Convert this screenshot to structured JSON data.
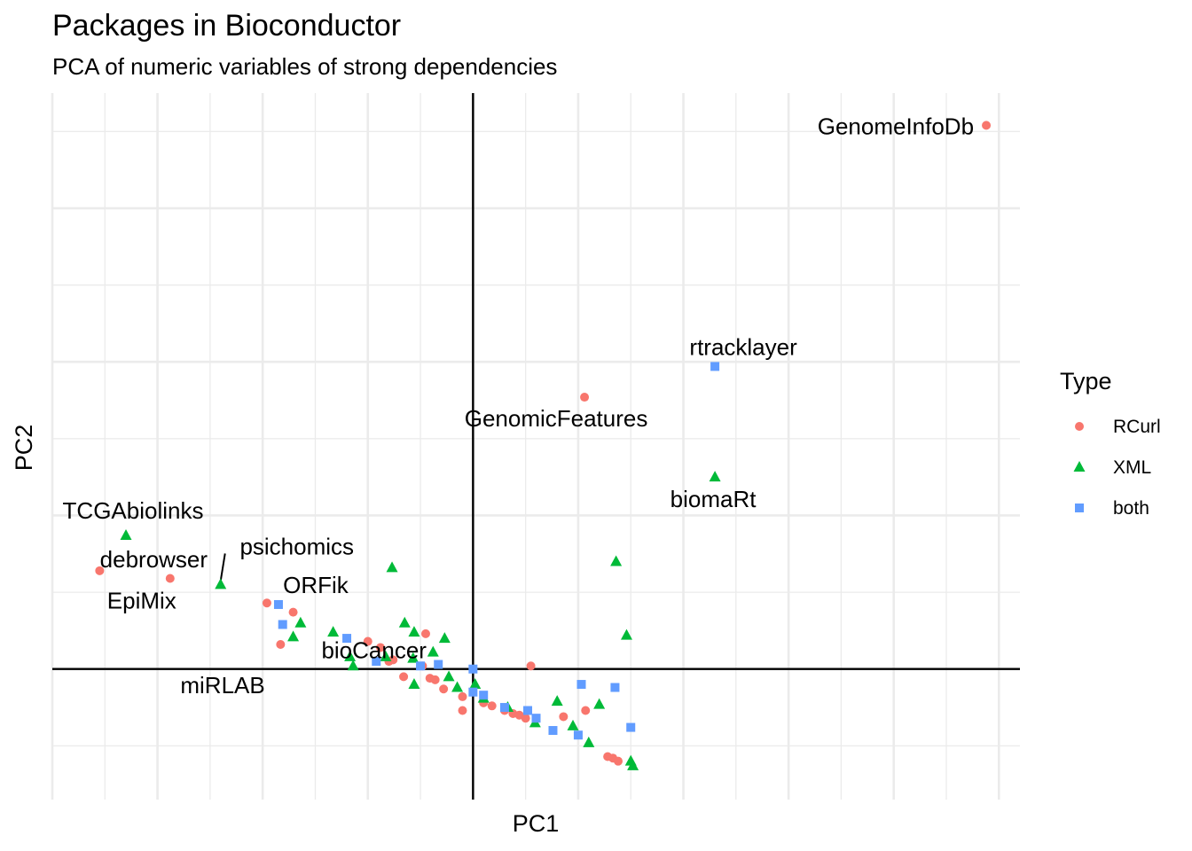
{
  "chart_data": {
    "type": "scatter",
    "title": "Packages in Bioconductor",
    "subtitle": "PCA of numeric variables of strong dependencies",
    "xlabel": "PC1",
    "ylabel": "PC2",
    "xlim": [
      -4.0,
      5.2
    ],
    "ylim": [
      -0.85,
      3.75
    ],
    "grid": true,
    "reference_lines": {
      "x": 0,
      "y": 0
    },
    "legend": {
      "title": "Type",
      "position": "right"
    },
    "series": [
      {
        "name": "RCurl",
        "shape": "circle",
        "color": "#F8766D",
        "points": [
          {
            "x": 4.88,
            "y": 3.54,
            "label": "GenomeInfoDb"
          },
          {
            "x": 1.06,
            "y": 1.77,
            "label": "GenomicFeatures"
          },
          {
            "x": -3.55,
            "y": 0.64,
            "label": "debrowser"
          },
          {
            "x": -2.88,
            "y": 0.59,
            "label": "EpiMix"
          },
          {
            "x": -1.96,
            "y": 0.43
          },
          {
            "x": -1.71,
            "y": 0.37
          },
          {
            "x": -1.83,
            "y": 0.16
          },
          {
            "x": -1.0,
            "y": 0.18
          },
          {
            "x": -0.88,
            "y": 0.14
          },
          {
            "x": -0.76,
            "y": 0.06
          },
          {
            "x": -0.8,
            "y": 0.05
          },
          {
            "x": -0.45,
            "y": 0.23
          },
          {
            "x": -0.48,
            "y": 0.02
          },
          {
            "x": -0.66,
            "y": -0.05
          },
          {
            "x": -0.41,
            "y": -0.06
          },
          {
            "x": -0.36,
            "y": -0.07
          },
          {
            "x": -0.28,
            "y": -0.13
          },
          {
            "x": -0.1,
            "y": -0.18
          },
          {
            "x": -0.1,
            "y": -0.27
          },
          {
            "x": 0.1,
            "y": -0.22
          },
          {
            "x": 0.18,
            "y": -0.24
          },
          {
            "x": 0.3,
            "y": -0.27
          },
          {
            "x": 0.38,
            "y": -0.29
          },
          {
            "x": 0.44,
            "y": -0.3
          },
          {
            "x": 0.5,
            "y": -0.32
          },
          {
            "x": 0.55,
            "y": 0.02
          },
          {
            "x": 0.86,
            "y": -0.31
          },
          {
            "x": 1.07,
            "y": -0.27
          },
          {
            "x": 1.28,
            "y": -0.57
          },
          {
            "x": 1.33,
            "y": -0.58
          },
          {
            "x": 1.38,
            "y": -0.6
          }
        ]
      },
      {
        "name": "XML",
        "shape": "triangle",
        "color": "#00BA38",
        "points": [
          {
            "x": -3.3,
            "y": 0.87,
            "label": "TCGAbiolinks"
          },
          {
            "x": -2.4,
            "y": 0.55,
            "label": "psichomics"
          },
          {
            "x": 2.3,
            "y": 1.25,
            "label": "biomaRt"
          },
          {
            "x": -0.77,
            "y": 0.66
          },
          {
            "x": 1.36,
            "y": 0.7
          },
          {
            "x": 1.46,
            "y": 0.22
          },
          {
            "x": -1.64,
            "y": 0.3
          },
          {
            "x": -1.71,
            "y": 0.21
          },
          {
            "x": -1.33,
            "y": 0.24
          },
          {
            "x": -0.65,
            "y": 0.3
          },
          {
            "x": -0.56,
            "y": 0.24
          },
          {
            "x": -0.27,
            "y": 0.2
          },
          {
            "x": -1.17,
            "y": 0.08
          },
          {
            "x": -1.14,
            "y": 0.02
          },
          {
            "x": -0.83,
            "y": 0.08
          },
          {
            "x": -0.57,
            "y": 0.07
          },
          {
            "x": -0.38,
            "y": 0.11
          },
          {
            "x": -0.56,
            "y": -0.1
          },
          {
            "x": -0.23,
            "y": -0.05
          },
          {
            "x": -0.15,
            "y": -0.12
          },
          {
            "x": 0.02,
            "y": -0.1
          },
          {
            "x": 0.1,
            "y": -0.19
          },
          {
            "x": 0.33,
            "y": -0.25
          },
          {
            "x": 0.59,
            "y": -0.35
          },
          {
            "x": 0.8,
            "y": -0.21
          },
          {
            "x": 0.95,
            "y": -0.37
          },
          {
            "x": 1.2,
            "y": -0.23
          },
          {
            "x": 1.1,
            "y": -0.48
          },
          {
            "x": 1.52,
            "y": -0.63
          },
          {
            "x": 1.5,
            "y": -0.6
          }
        ]
      },
      {
        "name": "both",
        "shape": "square",
        "color": "#619CFF",
        "points": [
          {
            "x": 2.3,
            "y": 1.97,
            "label": "rtracklayer"
          },
          {
            "x": -1.85,
            "y": 0.42,
            "label": "ORFik"
          },
          {
            "x": -1.81,
            "y": 0.29,
            "label": "bioCancer"
          },
          {
            "x": -1.2,
            "y": 0.2,
            "label": "miRLAB"
          },
          {
            "x": -0.92,
            "y": 0.05
          },
          {
            "x": -0.5,
            "y": 0.02
          },
          {
            "x": -0.33,
            "y": 0.03
          },
          {
            "x": 0.0,
            "y": 0.0
          },
          {
            "x": 0.1,
            "y": -0.17
          },
          {
            "x": 0.52,
            "y": -0.27
          },
          {
            "x": 0.6,
            "y": -0.32
          },
          {
            "x": 1.03,
            "y": -0.1
          },
          {
            "x": 1.35,
            "y": -0.12
          },
          {
            "x": 1.5,
            "y": -0.38
          },
          {
            "x": 0.0,
            "y": -0.15
          },
          {
            "x": 0.76,
            "y": -0.4
          },
          {
            "x": 1.0,
            "y": -0.43
          },
          {
            "x": 0.3,
            "y": -0.25
          }
        ]
      }
    ]
  }
}
